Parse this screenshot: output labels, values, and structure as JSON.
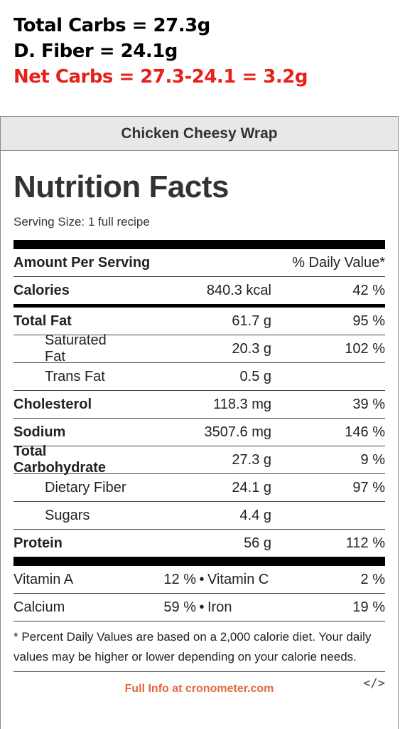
{
  "annotation": {
    "total_carbs": "Total Carbs = 27.3g",
    "fiber": "D. Fiber = 24.1g",
    "net_carbs": "Net Carbs = 27.3-24.1 = 3.2g",
    "colors": {
      "black": "#000000",
      "red": "#e8201a"
    }
  },
  "label": {
    "recipe_title": "Chicken Cheesy Wrap",
    "title": "Nutrition Facts",
    "serving_size": "Serving Size: 1 full recipe",
    "header_left": "Amount Per Serving",
    "header_right": "% Daily Value*",
    "rows": [
      {
        "name": "Calories",
        "amount": "840.3 kcal",
        "dv": "42 %"
      },
      {
        "name": "Total Fat",
        "amount": "61.7 g",
        "dv": "95 %"
      },
      {
        "name": "Saturated Fat",
        "amount": "20.3 g",
        "dv": "102 %"
      },
      {
        "name": "Trans Fat",
        "amount": "0.5 g",
        "dv": ""
      },
      {
        "name": "Cholesterol",
        "amount": "118.3 mg",
        "dv": "39 %"
      },
      {
        "name": "Sodium",
        "amount": "3507.6 mg",
        "dv": "146 %"
      },
      {
        "name": "Total Carbohydrate",
        "amount": "27.3 g",
        "dv": "9 %"
      },
      {
        "name": "Dietary Fiber",
        "amount": "24.1 g",
        "dv": "97 %"
      },
      {
        "name": "Sugars",
        "amount": "4.4 g",
        "dv": ""
      },
      {
        "name": "Protein",
        "amount": "56 g",
        "dv": "112 %"
      }
    ],
    "vitamins": [
      {
        "name1": "Vitamin A",
        "val1": "12 %",
        "sep": "•",
        "name2": "Vitamin C",
        "val2": "2 %"
      },
      {
        "name1": "Calcium",
        "val1": "59 %",
        "sep": "•",
        "name2": "Iron",
        "val2": "19 %"
      }
    ],
    "footnote": "* Percent Daily Values are based on a 2,000 calorie diet. Your daily values may be higher or lower depending on your calorie needs.",
    "footer_link": "Full Info at cronometer.com",
    "embed_icon": "</>",
    "colors": {
      "header_bg": "#e8e8e8",
      "link": "#e2693a"
    }
  }
}
